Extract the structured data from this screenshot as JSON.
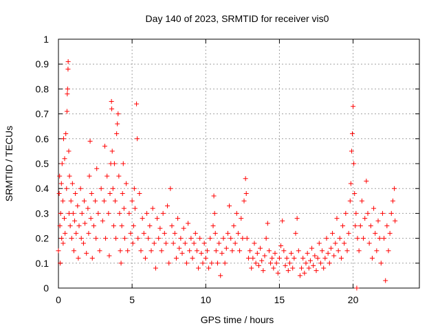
{
  "chart_data": {
    "type": "scatter",
    "title": "Day 140 of 2023, SRMTID for receiver vis0",
    "xlabel": "GPS time / hours",
    "ylabel": "SRMTID / TECUs",
    "xlim": [
      0,
      24.5
    ],
    "ylim": [
      0,
      1
    ],
    "xticks": [
      0,
      5,
      10,
      15,
      20
    ],
    "xtick_labels": [
      "0",
      "5",
      "10",
      "15",
      "20"
    ],
    "yticks": [
      0,
      0.1,
      0.2,
      0.3,
      0.4,
      0.5,
      0.6,
      0.7,
      0.8,
      0.9,
      1
    ],
    "ytick_labels": [
      "0",
      "0.1",
      "0.2",
      "0.3",
      "0.4",
      "0.5",
      "0.6",
      "0.7",
      "0.8",
      "0.9",
      "1"
    ],
    "grid": true,
    "marker": "+",
    "color": "#ff0000",
    "series": [
      {
        "name": "vis0",
        "points": [
          [
            0.0,
            0.15
          ],
          [
            0.05,
            0.38
          ],
          [
            0.08,
            0.45
          ],
          [
            0.1,
            0.25
          ],
          [
            0.12,
            0.1
          ],
          [
            0.15,
            0.3
          ],
          [
            0.2,
            0.42
          ],
          [
            0.22,
            0.2
          ],
          [
            0.25,
            0.5
          ],
          [
            0.3,
            0.35
          ],
          [
            0.32,
            0.18
          ],
          [
            0.35,
            0.6
          ],
          [
            0.4,
            0.28
          ],
          [
            0.42,
            0.52
          ],
          [
            0.45,
            0.22
          ],
          [
            0.5,
            0.62
          ],
          [
            0.55,
            0.4
          ],
          [
            0.58,
            0.71
          ],
          [
            0.6,
            0.78
          ],
          [
            0.62,
            0.8
          ],
          [
            0.65,
            0.88
          ],
          [
            0.66,
            0.91
          ],
          [
            0.7,
            0.55
          ],
          [
            0.72,
            0.3
          ],
          [
            0.75,
            0.45
          ],
          [
            0.8,
            0.25
          ],
          [
            0.85,
            0.35
          ],
          [
            0.9,
            0.2
          ],
          [
            0.95,
            0.42
          ],
          [
            1.0,
            0.3
          ],
          [
            1.05,
            0.15
          ],
          [
            1.1,
            0.27
          ],
          [
            1.15,
            0.38
          ],
          [
            1.2,
            0.22
          ],
          [
            1.3,
            0.33
          ],
          [
            1.35,
            0.12
          ],
          [
            1.4,
            0.25
          ],
          [
            1.5,
            0.4
          ],
          [
            1.55,
            0.2
          ],
          [
            1.6,
            0.3
          ],
          [
            1.7,
            0.18
          ],
          [
            1.75,
            0.35
          ],
          [
            1.8,
            0.26
          ],
          [
            1.9,
            0.14
          ],
          [
            2.0,
            0.32
          ],
          [
            2.05,
            0.22
          ],
          [
            2.1,
            0.45
          ],
          [
            2.15,
            0.59
          ],
          [
            2.2,
            0.28
          ],
          [
            2.25,
            0.38
          ],
          [
            2.3,
            0.12
          ],
          [
            2.4,
            0.25
          ],
          [
            2.5,
            0.35
          ],
          [
            2.55,
            0.2
          ],
          [
            2.6,
            0.48
          ],
          [
            2.7,
            0.3
          ],
          [
            2.8,
            0.15
          ],
          [
            2.9,
            0.4
          ],
          [
            3.0,
            0.27
          ],
          [
            3.1,
            0.35
          ],
          [
            3.15,
            0.57
          ],
          [
            3.2,
            0.2
          ],
          [
            3.3,
            0.45
          ],
          [
            3.4,
            0.3
          ],
          [
            3.45,
            0.13
          ],
          [
            3.5,
            0.38
          ],
          [
            3.55,
            0.5
          ],
          [
            3.6,
            0.75
          ],
          [
            3.62,
            0.72
          ],
          [
            3.65,
            0.55
          ],
          [
            3.7,
            0.4
          ],
          [
            3.75,
            0.25
          ],
          [
            3.8,
            0.5
          ],
          [
            3.85,
            0.35
          ],
          [
            3.9,
            0.2
          ],
          [
            3.95,
            0.62
          ],
          [
            4.0,
            0.66
          ],
          [
            4.05,
            0.7
          ],
          [
            4.1,
            0.45
          ],
          [
            4.15,
            0.3
          ],
          [
            4.2,
            0.15
          ],
          [
            4.25,
            0.1
          ],
          [
            4.3,
            0.25
          ],
          [
            4.35,
            0.38
          ],
          [
            4.4,
            0.5
          ],
          [
            4.45,
            0.32
          ],
          [
            4.5,
            0.2
          ],
          [
            4.6,
            0.42
          ],
          [
            4.7,
            0.15
          ],
          [
            4.8,
            0.3
          ],
          [
            4.9,
            0.22
          ],
          [
            5.0,
            0.35
          ],
          [
            5.05,
            0.18
          ],
          [
            5.1,
            0.25
          ],
          [
            5.15,
            0.4
          ],
          [
            5.2,
            0.32
          ],
          [
            5.3,
            0.74
          ],
          [
            5.35,
            0.6
          ],
          [
            5.4,
            0.2
          ],
          [
            5.5,
            0.38
          ],
          [
            5.6,
            0.15
          ],
          [
            5.7,
            0.28
          ],
          [
            5.8,
            0.22
          ],
          [
            5.9,
            0.12
          ],
          [
            6.0,
            0.3
          ],
          [
            6.1,
            0.2
          ],
          [
            6.2,
            0.25
          ],
          [
            6.3,
            0.15
          ],
          [
            6.4,
            0.32
          ],
          [
            6.5,
            0.18
          ],
          [
            6.6,
            0.08
          ],
          [
            6.7,
            0.28
          ],
          [
            6.8,
            0.2
          ],
          [
            6.9,
            0.24
          ],
          [
            7.0,
            0.15
          ],
          [
            7.1,
            0.3
          ],
          [
            7.2,
            0.22
          ],
          [
            7.3,
            0.18
          ],
          [
            7.4,
            0.33
          ],
          [
            7.5,
            0.1
          ],
          [
            7.6,
            0.4
          ],
          [
            7.7,
            0.25
          ],
          [
            7.8,
            0.18
          ],
          [
            7.9,
            0.22
          ],
          [
            8.0,
            0.12
          ],
          [
            8.1,
            0.28
          ],
          [
            8.2,
            0.16
          ],
          [
            8.3,
            0.2
          ],
          [
            8.4,
            0.14
          ],
          [
            8.5,
            0.24
          ],
          [
            8.6,
            0.18
          ],
          [
            8.7,
            0.1
          ],
          [
            8.8,
            0.26
          ],
          [
            8.9,
            0.15
          ],
          [
            9.0,
            0.2
          ],
          [
            9.1,
            0.12
          ],
          [
            9.2,
            0.18
          ],
          [
            9.3,
            0.22
          ],
          [
            9.4,
            0.15
          ],
          [
            9.5,
            0.08
          ],
          [
            9.6,
            0.2
          ],
          [
            9.7,
            0.14
          ],
          [
            9.8,
            0.1
          ],
          [
            9.9,
            0.18
          ],
          [
            10.0,
            0.12
          ],
          [
            10.1,
            0.15
          ],
          [
            10.2,
            0.08
          ],
          [
            10.3,
            0.2
          ],
          [
            10.4,
            0.1
          ],
          [
            10.5,
            0.25
          ],
          [
            10.55,
            0.37
          ],
          [
            10.6,
            0.3
          ],
          [
            10.65,
            0.22
          ],
          [
            10.7,
            0.15
          ],
          [
            10.8,
            0.1
          ],
          [
            10.9,
            0.18
          ],
          [
            11.0,
            0.05
          ],
          [
            11.1,
            0.14
          ],
          [
            11.2,
            0.2
          ],
          [
            11.3,
            0.1
          ],
          [
            11.4,
            0.16
          ],
          [
            11.5,
            0.22
          ],
          [
            11.6,
            0.33
          ],
          [
            11.7,
            0.2
          ],
          [
            11.8,
            0.15
          ],
          [
            11.9,
            0.25
          ],
          [
            12.0,
            0.18
          ],
          [
            12.1,
            0.3
          ],
          [
            12.2,
            0.22
          ],
          [
            12.3,
            0.15
          ],
          [
            12.4,
            0.28
          ],
          [
            12.5,
            0.2
          ],
          [
            12.6,
            0.35
          ],
          [
            12.7,
            0.44
          ],
          [
            12.75,
            0.38
          ],
          [
            12.8,
            0.2
          ],
          [
            12.9,
            0.12
          ],
          [
            13.0,
            0.15
          ],
          [
            13.1,
            0.08
          ],
          [
            13.2,
            0.12
          ],
          [
            13.3,
            0.18
          ],
          [
            13.4,
            0.1
          ],
          [
            13.5,
            0.14
          ],
          [
            13.6,
            0.09
          ],
          [
            13.7,
            0.16
          ],
          [
            13.8,
            0.11
          ],
          [
            13.9,
            0.07
          ],
          [
            14.0,
            0.13
          ],
          [
            14.1,
            0.2
          ],
          [
            14.2,
            0.26
          ],
          [
            14.3,
            0.15
          ],
          [
            14.4,
            0.1
          ],
          [
            14.5,
            0.12
          ],
          [
            14.6,
            0.08
          ],
          [
            14.7,
            0.14
          ],
          [
            14.8,
            0.1
          ],
          [
            14.9,
            0.06
          ],
          [
            15.0,
            0.12
          ],
          [
            15.1,
            0.17
          ],
          [
            15.2,
            0.27
          ],
          [
            15.3,
            0.15
          ],
          [
            15.4,
            0.09
          ],
          [
            15.5,
            0.12
          ],
          [
            15.6,
            0.07
          ],
          [
            15.7,
            0.1
          ],
          [
            15.8,
            0.14
          ],
          [
            15.9,
            0.08
          ],
          [
            16.0,
            0.12
          ],
          [
            16.1,
            0.22
          ],
          [
            16.2,
            0.28
          ],
          [
            16.3,
            0.15
          ],
          [
            16.4,
            0.05
          ],
          [
            16.5,
            0.08
          ],
          [
            16.6,
            0.12
          ],
          [
            16.7,
            0.06
          ],
          [
            16.8,
            0.1
          ],
          [
            16.9,
            0.14
          ],
          [
            17.0,
            0.08
          ],
          [
            17.1,
            0.11
          ],
          [
            17.2,
            0.16
          ],
          [
            17.3,
            0.09
          ],
          [
            17.4,
            0.13
          ],
          [
            17.5,
            0.07
          ],
          [
            17.6,
            0.12
          ],
          [
            17.7,
            0.18
          ],
          [
            17.8,
            0.1
          ],
          [
            17.9,
            0.15
          ],
          [
            18.0,
            0.08
          ],
          [
            18.1,
            0.12
          ],
          [
            18.2,
            0.2
          ],
          [
            18.3,
            0.14
          ],
          [
            18.4,
            0.1
          ],
          [
            18.5,
            0.16
          ],
          [
            18.6,
            0.22
          ],
          [
            18.7,
            0.13
          ],
          [
            18.8,
            0.18
          ],
          [
            18.9,
            0.28
          ],
          [
            19.0,
            0.15
          ],
          [
            19.1,
            0.2
          ],
          [
            19.2,
            0.12
          ],
          [
            19.3,
            0.25
          ],
          [
            19.4,
            0.18
          ],
          [
            19.5,
            0.3
          ],
          [
            19.6,
            0.15
          ],
          [
            19.7,
            0.22
          ],
          [
            19.8,
            0.35
          ],
          [
            19.85,
            0.42
          ],
          [
            19.9,
            0.55
          ],
          [
            19.95,
            0.62
          ],
          [
            20.0,
            0.73
          ],
          [
            20.05,
            0.5
          ],
          [
            20.1,
            0.38
          ],
          [
            20.15,
            0.25
          ],
          [
            20.2,
            0.3
          ],
          [
            20.25,
            0.0
          ],
          [
            20.3,
            0.2
          ],
          [
            20.4,
            0.15
          ],
          [
            20.5,
            0.25
          ],
          [
            20.6,
            0.35
          ],
          [
            20.7,
            0.2
          ],
          [
            20.8,
            0.28
          ],
          [
            20.9,
            0.43
          ],
          [
            21.0,
            0.3
          ],
          [
            21.1,
            0.18
          ],
          [
            21.2,
            0.25
          ],
          [
            21.3,
            0.12
          ],
          [
            21.4,
            0.32
          ],
          [
            21.5,
            0.22
          ],
          [
            21.6,
            0.15
          ],
          [
            21.7,
            0.27
          ],
          [
            21.8,
            0.2
          ],
          [
            21.9,
            0.1
          ],
          [
            22.0,
            0.3
          ],
          [
            22.1,
            0.2
          ],
          [
            22.2,
            0.03
          ],
          [
            22.3,
            0.25
          ],
          [
            22.4,
            0.15
          ],
          [
            22.5,
            0.22
          ],
          [
            22.6,
            0.3
          ],
          [
            22.7,
            0.35
          ],
          [
            22.8,
            0.4
          ],
          [
            22.85,
            0.27
          ]
        ]
      }
    ]
  }
}
